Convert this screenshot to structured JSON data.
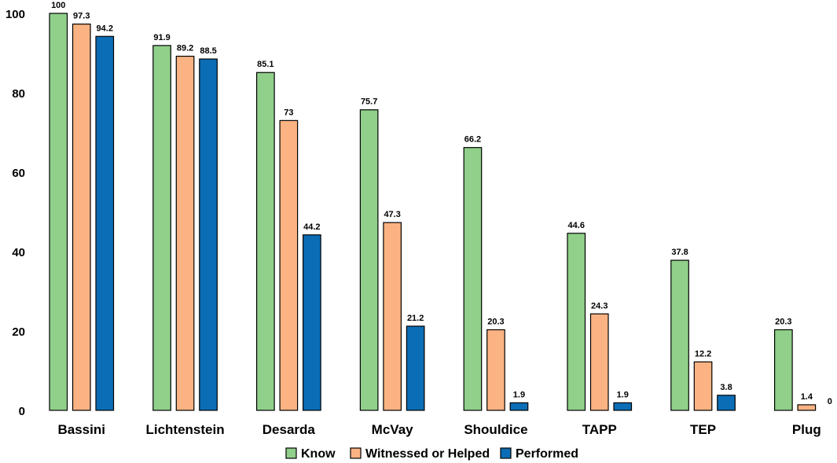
{
  "chart_data": {
    "type": "bar",
    "title": "",
    "xlabel": "",
    "ylabel": "",
    "ylim": [
      0,
      100
    ],
    "yticks": [
      0,
      20,
      40,
      60,
      80,
      100
    ],
    "grid": false,
    "legend_position": "bottom-center",
    "categories": [
      "Bassini",
      "Lichtenstein",
      "Desarda",
      "McVay",
      "Shouldice",
      "TAPP",
      "TEP",
      "Plug"
    ],
    "series": [
      {
        "name": "Know",
        "color": "#90d08a",
        "values": [
          100,
          91.9,
          85.1,
          75.7,
          66.2,
          44.6,
          37.8,
          20.3
        ]
      },
      {
        "name": "Witnessed or Helped",
        "color": "#fbb383",
        "values": [
          97.3,
          89.2,
          73,
          47.3,
          20.3,
          24.3,
          12.2,
          1.4
        ]
      },
      {
        "name": "Performed",
        "color": "#0b6db5",
        "values": [
          94.2,
          88.5,
          44.2,
          21.2,
          1.9,
          1.9,
          3.8,
          0
        ]
      }
    ]
  }
}
